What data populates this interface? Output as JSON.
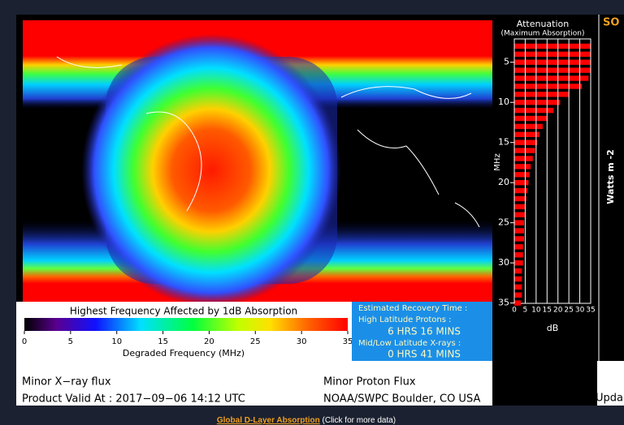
{
  "chart_data": {
    "type": "bar",
    "orientation": "horizontal",
    "title": "Attenuation",
    "subtitle": "(Maximum Absorption)",
    "ylabel": "MHz",
    "xlabel": "dB",
    "y": [
      3,
      4,
      5,
      6,
      7,
      8,
      9,
      10,
      11,
      12,
      13,
      14,
      15,
      16,
      17,
      18,
      19,
      20,
      21,
      22,
      23,
      24,
      25,
      26,
      27,
      28,
      29,
      30,
      31,
      32,
      33,
      34,
      35
    ],
    "values": [
      35,
      35,
      35,
      35,
      34,
      31,
      25,
      21,
      18,
      15,
      13,
      11.5,
      10.5,
      9.5,
      8.5,
      7.5,
      7,
      6.5,
      6,
      5.5,
      5,
      5,
      4.5,
      4.5,
      4.5,
      4,
      4,
      4,
      3.5,
      3.5,
      3.5,
      3.5,
      3
    ],
    "ylim": [
      2.5,
      36
    ],
    "yticks": [
      5,
      10,
      15,
      20,
      25,
      30,
      35
    ],
    "xlim": [
      0,
      35
    ],
    "xticks": [
      0,
      5,
      10,
      15,
      20,
      25,
      30,
      35
    ],
    "color": "#ff0000",
    "grid": true
  },
  "legend": {
    "title": "Highest Frequency Affected by 1dB Absorption",
    "xlabel": "Degraded Frequency (MHz)",
    "lim": [
      0,
      35
    ],
    "ticks": [
      0,
      5,
      10,
      15,
      20,
      25,
      30,
      35
    ]
  },
  "recovery": {
    "title": "Estimated Recovery Time :",
    "high_label": "High Latitude Protons :",
    "high_value": "6 HRS 16 MINS",
    "low_label": "Mid/Low Latitude X-rays :",
    "low_value": "0 HRS 41 MINS"
  },
  "status": {
    "xray": "Minor X−ray flux",
    "valid": "Product Valid At : 2017−09−06 14:12 UTC",
    "proton": "Minor Proton Flux",
    "source": "NOAA/SWPC Boulder, CO USA"
  },
  "right_panel": {
    "title_fragment": "SO",
    "ylabel": "Watts m -2",
    "footer_fragment": "Upda"
  },
  "footer": {
    "link": "Global D-Layer Absorption",
    "note": "(Click for more data)"
  }
}
